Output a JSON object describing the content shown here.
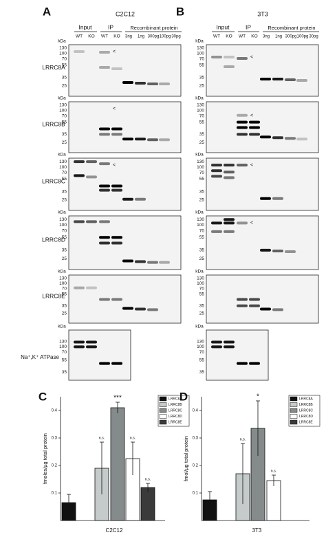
{
  "panels": [
    {
      "letter": "A",
      "title": "C2C12"
    },
    {
      "letter": "B",
      "title": "3T3"
    }
  ],
  "headers": {
    "input": "Input",
    "ip": "IP",
    "recombinant": "Recombinant protein",
    "genotypes": [
      "WT",
      "KO"
    ],
    "amounts": [
      "3ng",
      "1ng",
      "300pg",
      "100pg",
      "30pg"
    ]
  },
  "kda": "kDa",
  "markers": [
    "130",
    "100",
    "70",
    "55",
    "35",
    "25"
  ],
  "atpase_markers": [
    "130",
    "100",
    "70",
    "55",
    "35"
  ],
  "rows": [
    "LRRC8A",
    "LRRC8B",
    "LRRC8C",
    "LRRC8D",
    "LRRC8E"
  ],
  "atpase": "Na⁺,K⁺ ATPase",
  "arrow": "<",
  "chart_data": [
    {
      "type": "bar",
      "letter": "C",
      "xlabel": "C2C12",
      "ylabel": "fmoles/µg total protein",
      "ylim": [
        0,
        0.45
      ],
      "yticks": [
        0.1,
        0.2,
        0.3,
        0.4
      ],
      "series": [
        {
          "name": "LRRC8A",
          "color": "#111111",
          "values": [
            0.065
          ],
          "errors": [
            0.03
          ]
        },
        {
          "name": "LRRC8B",
          "color": "#c5cbcb",
          "values": [
            0.19
          ],
          "errors": [
            0.095
          ],
          "annotation": "n.s."
        },
        {
          "name": "LRRC8C",
          "color": "#858a8a",
          "values": [
            0.41
          ],
          "errors": [
            0.02
          ],
          "annotation": "***"
        },
        {
          "name": "LRRC8D",
          "color": "#ffffff",
          "values": [
            0.225
          ],
          "errors": [
            0.06
          ],
          "annotation": "n.s."
        },
        {
          "name": "LRRC8E",
          "color": "#3a3a3a",
          "values": [
            0.12
          ],
          "errors": [
            0.015
          ],
          "annotation": "n.s."
        }
      ]
    },
    {
      "type": "bar",
      "letter": "D",
      "xlabel": "3T3",
      "ylabel": "fmol/µg total protein",
      "ylim": [
        0,
        0.45
      ],
      "yticks": [
        0.1,
        0.2,
        0.3,
        0.4
      ],
      "series": [
        {
          "name": "LRRC8A",
          "color": "#111111",
          "values": [
            0.075
          ],
          "errors": [
            0.03
          ]
        },
        {
          "name": "LRRC8B",
          "color": "#c5cbcb",
          "values": [
            0.17
          ],
          "errors": [
            0.11
          ],
          "annotation": "n.s."
        },
        {
          "name": "LRRC8C",
          "color": "#858a8a",
          "values": [
            0.335
          ],
          "errors": [
            0.1
          ],
          "annotation": "*"
        },
        {
          "name": "LRRC8D",
          "color": "#ffffff",
          "values": [
            0.145
          ],
          "errors": [
            0.02
          ],
          "annotation": "n.s."
        },
        {
          "name": "LRRC8E",
          "color": "#3a3a3a",
          "values": [
            null
          ],
          "errors": [
            null
          ]
        }
      ]
    }
  ]
}
